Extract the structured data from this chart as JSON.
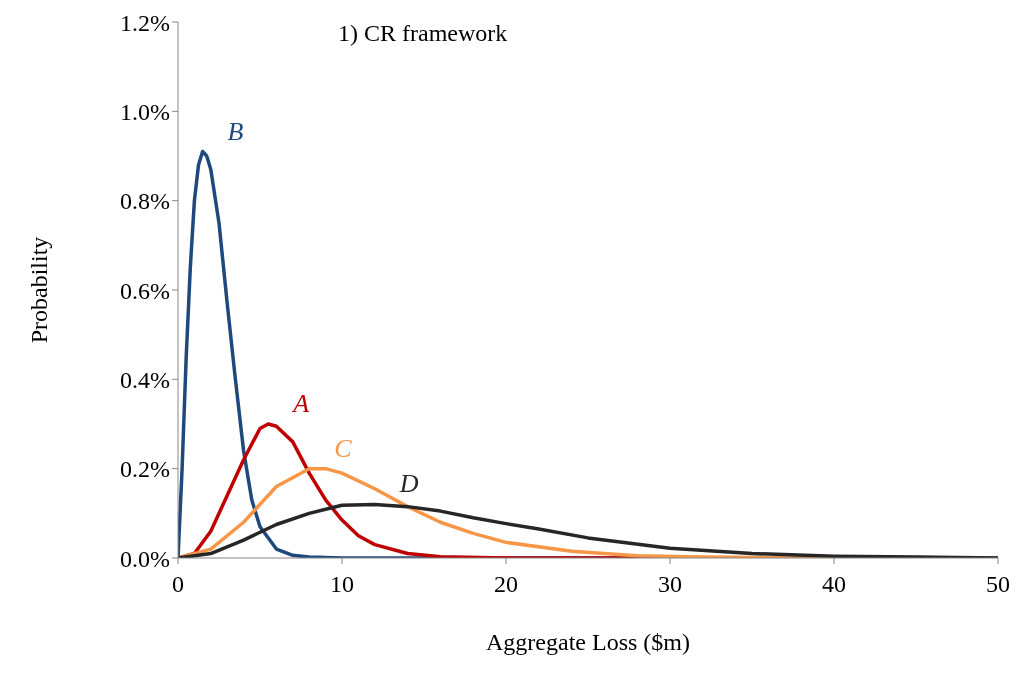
{
  "chart_data": {
    "type": "line",
    "title": "1) CR framework",
    "xlabel": "Aggregate Loss ($m)",
    "ylabel": "Probability",
    "xlim": [
      0,
      50
    ],
    "xticks": [
      0,
      10,
      20,
      30,
      40,
      50
    ],
    "ylim": [
      0,
      1.2
    ],
    "yticks": [
      {
        "value": 0,
        "label": "0.0%"
      },
      {
        "value": 0.2,
        "label": "0.2%"
      },
      {
        "value": 0.4,
        "label": "0.4%"
      },
      {
        "value": 0.6,
        "label": "0.6%"
      },
      {
        "value": 0.8,
        "label": "0.8%"
      },
      {
        "value": 1.0,
        "label": "1.0%"
      },
      {
        "value": 1.2,
        "label": "1.2%"
      }
    ],
    "series": [
      {
        "name": "B",
        "color": "#1f497d",
        "x": [
          0,
          0.25,
          0.5,
          0.75,
          1,
          1.25,
          1.5,
          1.75,
          2,
          2.5,
          3,
          3.5,
          4,
          4.5,
          5,
          6,
          7,
          8,
          10,
          50
        ],
        "values": [
          0,
          0.2,
          0.45,
          0.65,
          0.8,
          0.88,
          0.91,
          0.9,
          0.87,
          0.75,
          0.57,
          0.4,
          0.24,
          0.13,
          0.07,
          0.02,
          0.006,
          0.002,
          0,
          0
        ]
      },
      {
        "name": "A",
        "color": "#c00000",
        "x": [
          0,
          1,
          2,
          3,
          4,
          5,
          5.5,
          6,
          7,
          8,
          9,
          10,
          11,
          12,
          14,
          16,
          20,
          50
        ],
        "values": [
          0,
          0.01,
          0.06,
          0.14,
          0.22,
          0.29,
          0.3,
          0.295,
          0.26,
          0.19,
          0.13,
          0.085,
          0.05,
          0.03,
          0.01,
          0.003,
          0,
          0
        ]
      },
      {
        "name": "C",
        "color": "#f79646",
        "x": [
          0,
          2,
          4,
          6,
          8,
          9,
          10,
          12,
          14,
          16,
          18,
          20,
          24,
          28,
          32,
          40,
          50
        ],
        "values": [
          0,
          0.02,
          0.08,
          0.16,
          0.2,
          0.2,
          0.19,
          0.155,
          0.115,
          0.08,
          0.055,
          0.035,
          0.015,
          0.005,
          0.002,
          0,
          0
        ]
      },
      {
        "name": "D",
        "color": "#262626",
        "x": [
          0,
          2,
          4,
          6,
          8,
          10,
          12,
          14,
          16,
          18,
          20,
          22,
          25,
          30,
          35,
          40,
          45,
          50
        ],
        "values": [
          0,
          0.01,
          0.04,
          0.075,
          0.1,
          0.118,
          0.12,
          0.115,
          0.105,
          0.09,
          0.077,
          0.065,
          0.045,
          0.022,
          0.01,
          0.004,
          0.002,
          0
        ]
      }
    ]
  }
}
